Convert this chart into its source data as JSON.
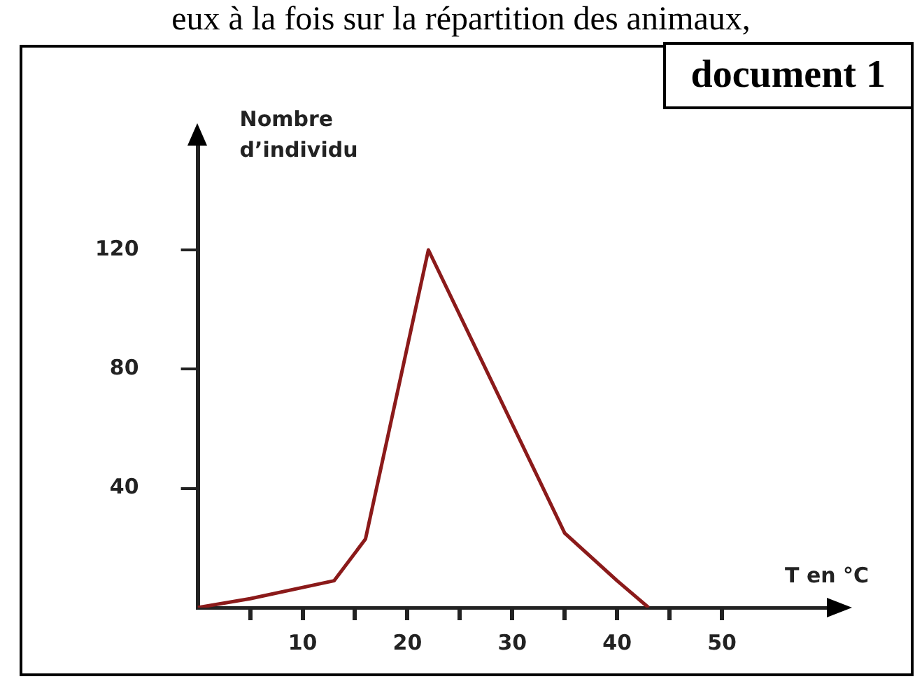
{
  "chart_data": {
    "type": "line",
    "title": "document 1",
    "xlabel": "T en °C",
    "ylabel": "Nombre d’individu",
    "annotations": [
      "eux à la fois sur la répartition des animaux,"
    ],
    "x": [
      0,
      5,
      13,
      16,
      22,
      35,
      40,
      43
    ],
    "series": [
      {
        "color": "#8b1a1a",
        "values": [
          0,
          3,
          9,
          23,
          120,
          25,
          9,
          0
        ]
      }
    ],
    "xlim": [
      0,
      60
    ],
    "ylim": [
      0,
      155
    ],
    "xticks": [
      {
        "value": 5,
        "label": null
      },
      10,
      {
        "value": 15,
        "label": null
      },
      20,
      {
        "value": 25,
        "label": null
      },
      30,
      {
        "value": 35,
        "label": null
      },
      40,
      {
        "value": 45,
        "label": null
      },
      50
    ],
    "yticks": [
      40,
      80,
      120
    ],
    "grid": false,
    "legend": false,
    "marker": "none",
    "line_style": "solid"
  }
}
